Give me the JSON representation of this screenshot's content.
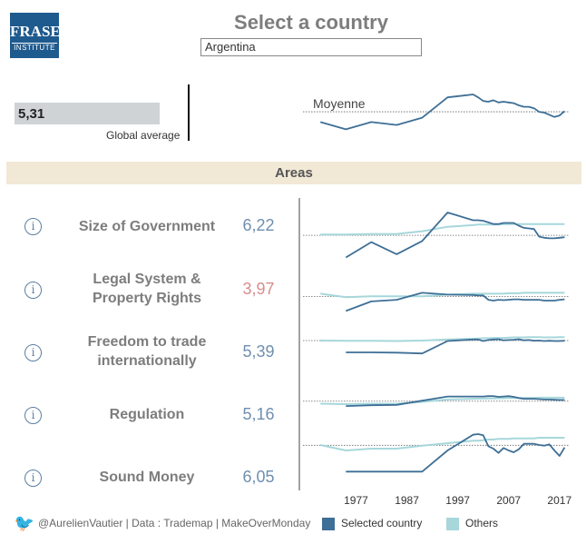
{
  "logo": {
    "line1": "FRASER",
    "line2": "INSTITUTE"
  },
  "title": "Select a country",
  "country": {
    "selected": "Argentina"
  },
  "global": {
    "value": "5,31",
    "label": "Global average",
    "fraction": 0.531
  },
  "moyenne": {
    "label": "Moyenne"
  },
  "areas_header": "Areas",
  "areas": [
    {
      "label": "Size of Government",
      "value": "6,22",
      "status": "normal"
    },
    {
      "label": "Legal System & Property Rights",
      "value": "3,97",
      "status": "low"
    },
    {
      "label": "Freedom to trade internationally",
      "value": "5,39",
      "status": "normal"
    },
    {
      "label": "Regulation",
      "value": "5,16",
      "status": "normal"
    },
    {
      "label": "Sound Money",
      "value": "6,05",
      "status": "normal"
    }
  ],
  "info_icon_glyph": "i",
  "x_axis_ticks": [
    "1977",
    "1987",
    "1997",
    "2007",
    "2017"
  ],
  "footer": {
    "credit": "@AurelienVautier | Data : Trademap | MakeOverMonday",
    "legend_selected": "Selected country",
    "legend_others": "Others"
  },
  "colors": {
    "selected": "#3e6f96",
    "others": "#a7d7db",
    "low_value": "#d98c8c",
    "value": "#6f8faf",
    "brand": "#1e5a8e",
    "band": "#f1e8d6"
  },
  "chart_data": {
    "type": "line",
    "x": [
      1970,
      1975,
      1980,
      1985,
      1990,
      1995,
      2000,
      2001,
      2002,
      2003,
      2004,
      2005,
      2006,
      2007,
      2008,
      2009,
      2010,
      2011,
      2012,
      2013,
      2014,
      2015,
      2016,
      2017,
      2018
    ],
    "xlim": [
      1968,
      2019
    ],
    "charts": [
      {
        "name": "Moyenne",
        "series": [
          {
            "name": "Selected country",
            "values": [
              4.6,
              4.1,
              4.6,
              4.4,
              4.9,
              6.3,
              6.5,
              6.3,
              6.05,
              6.0,
              6.1,
              5.95,
              6.0,
              5.95,
              5.9,
              5.75,
              5.65,
              5.65,
              5.55,
              5.3,
              5.25,
              5.1,
              4.95,
              5.05,
              5.35
            ]
          }
        ],
        "ylim": [
          3.5,
          7.0
        ],
        "reference": 5.31
      },
      {
        "name": "Size of Government",
        "series": [
          {
            "name": "Selected country",
            "values": [
              null,
              4.2,
              5.6,
              4.5,
              5.7,
              8.3,
              7.6,
              7.6,
              7.55,
              7.4,
              7.25,
              7.25,
              7.35,
              7.35,
              7.35,
              7.1,
              6.9,
              6.85,
              6.8,
              6.1,
              6.0,
              5.95,
              5.95,
              6.0,
              6.05
            ]
          },
          {
            "name": "Others",
            "values": [
              6.3,
              6.3,
              6.35,
              6.35,
              6.6,
              7.0,
              7.15,
              7.2,
              7.2,
              7.2,
              7.2,
              7.2,
              7.25,
              7.25,
              7.25,
              7.25,
              7.25,
              7.25,
              7.25,
              7.25,
              7.25,
              7.25,
              7.25,
              7.25,
              7.25
            ]
          }
        ],
        "ylim": [
          3.5,
          8.8
        ],
        "reference": 6.22
      },
      {
        "name": "Legal System & Property Rights",
        "series": [
          {
            "name": "Selected country",
            "values": [
              null,
              2.3,
              3.4,
              3.6,
              4.4,
              4.2,
              4.15,
              4.1,
              4.1,
              3.6,
              3.5,
              3.6,
              3.55,
              3.6,
              3.65,
              3.65,
              3.6,
              3.6,
              3.6,
              3.6,
              3.5,
              3.5,
              3.5,
              3.6,
              3.65
            ]
          },
          {
            "name": "Others",
            "values": [
              4.3,
              3.9,
              4.0,
              4.0,
              4.0,
              4.2,
              4.3,
              4.3,
              4.3,
              4.3,
              4.3,
              4.3,
              4.3,
              4.35,
              4.35,
              4.35,
              4.4,
              4.4,
              4.4,
              4.4,
              4.4,
              4.4,
              4.4,
              4.4,
              4.4
            ]
          }
        ],
        "ylim": [
          1.5,
          5.5
        ],
        "reference": 3.97
      },
      {
        "name": "Freedom to trade internationally",
        "series": [
          {
            "name": "Selected country",
            "values": [
              null,
              3.1,
              3.1,
              3.05,
              2.9,
              5.3,
              5.6,
              5.6,
              5.3,
              5.5,
              5.6,
              5.65,
              5.45,
              5.5,
              5.55,
              5.65,
              5.45,
              5.5,
              5.35,
              5.4,
              5.3,
              5.35,
              5.3,
              5.3,
              5.35
            ]
          },
          {
            "name": "Others",
            "values": [
              5.4,
              5.35,
              5.35,
              5.3,
              5.4,
              5.6,
              5.75,
              5.8,
              5.85,
              5.85,
              5.9,
              5.9,
              5.9,
              5.95,
              6.0,
              6.0,
              6.0,
              6.05,
              6.05,
              6.05,
              6.0,
              6.0,
              6.0,
              6.05,
              6.05
            ]
          }
        ],
        "ylim": [
          1.0,
          7.5
        ],
        "reference": 5.39
      },
      {
        "name": "Regulation",
        "series": [
          {
            "name": "Selected country",
            "values": [
              null,
              3.9,
              4.1,
              4.2,
              5.3,
              6.4,
              6.4,
              6.4,
              6.4,
              6.5,
              6.5,
              6.3,
              6.4,
              6.5,
              6.3,
              6.0,
              5.8,
              5.8,
              5.8,
              5.7,
              5.6,
              5.6,
              5.55,
              5.5,
              5.5
            ]
          },
          {
            "name": "Others",
            "values": [
              4.5,
              4.4,
              4.5,
              4.5,
              5.0,
              5.6,
              5.8,
              5.85,
              5.85,
              5.9,
              5.9,
              5.95,
              5.95,
              6.0,
              6.0,
              6.0,
              6.05,
              6.05,
              6.05,
              6.1,
              6.1,
              6.1,
              6.1,
              6.1,
              6.1
            ]
          }
        ],
        "ylim": [
          2.0,
          7.5
        ],
        "reference": 5.16
      },
      {
        "name": "Sound Money",
        "series": [
          {
            "name": "Selected country",
            "values": [
              null,
              1.7,
              1.7,
              1.7,
              1.7,
              5.2,
              7.8,
              7.9,
              7.7,
              5.9,
              5.5,
              4.8,
              5.6,
              5.2,
              4.9,
              5.4,
              6.3,
              6.3,
              6.3,
              6.1,
              6.0,
              6.2,
              5.2,
              4.3,
              5.7
            ]
          },
          {
            "name": "Others",
            "values": [
              6.1,
              5.2,
              5.5,
              5.5,
              6.0,
              6.4,
              6.8,
              6.8,
              6.9,
              7.0,
              7.0,
              7.1,
              7.1,
              7.1,
              7.2,
              7.2,
              7.2,
              7.2,
              7.2,
              7.3,
              7.3,
              7.3,
              7.3,
              7.3,
              7.3
            ]
          }
        ],
        "ylim": [
          1.0,
          8.5
        ],
        "reference": 6.05
      }
    ]
  }
}
